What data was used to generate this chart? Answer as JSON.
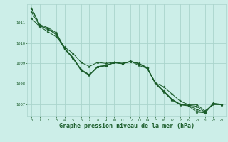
{
  "background_color": "#cceee8",
  "grid_color": "#aad4cc",
  "line_color": "#1a5c2a",
  "marker_color": "#1a5c2a",
  "title": "Graphe pression niveau de la mer (hPa)",
  "title_fontsize": 6.0,
  "title_fontweight": "bold",
  "tick_color": "#1a5c2a",
  "xlim": [
    -0.5,
    23.5
  ],
  "ylim": [
    1006.4,
    1011.9
  ],
  "yticks": [
    1007,
    1008,
    1009,
    1010,
    1011
  ],
  "xticks": [
    0,
    1,
    2,
    3,
    4,
    5,
    6,
    7,
    8,
    9,
    10,
    11,
    12,
    13,
    14,
    15,
    16,
    17,
    18,
    19,
    20,
    21,
    22,
    23
  ],
  "series": [
    [
      1011.7,
      1010.9,
      1010.75,
      1010.5,
      1009.75,
      1009.3,
      1008.7,
      1008.45,
      1008.85,
      1008.9,
      1009.05,
      1009.0,
      1009.1,
      1009.0,
      1008.8,
      1008.05,
      1007.65,
      1007.25,
      1007.0,
      1006.95,
      1006.9,
      1006.62,
      1007.05,
      1007.0
    ],
    [
      1011.7,
      1010.85,
      1010.7,
      1010.4,
      1009.7,
      1009.25,
      1008.65,
      1008.42,
      1008.82,
      1008.88,
      1009.03,
      1008.98,
      1009.08,
      1008.98,
      1008.75,
      1008.0,
      1007.6,
      1007.2,
      1006.97,
      1006.92,
      1006.62,
      1006.58,
      1007.02,
      1006.97
    ],
    [
      1011.2,
      1010.8,
      1010.55,
      1010.3,
      1009.8,
      1009.5,
      1009.05,
      1008.85,
      1009.05,
      1009.0,
      1009.05,
      1009.0,
      1009.1,
      1008.9,
      1008.75,
      1008.05,
      1007.85,
      1007.5,
      1007.15,
      1006.98,
      1006.98,
      1006.68,
      1006.98,
      1006.98
    ],
    [
      1011.5,
      1010.85,
      1010.65,
      1010.45,
      1009.72,
      1009.28,
      1008.68,
      1008.44,
      1008.84,
      1008.89,
      1009.04,
      1008.99,
      1009.09,
      1008.99,
      1008.77,
      1008.02,
      1007.62,
      1007.22,
      1006.99,
      1006.94,
      1006.75,
      1006.6,
      1007.03,
      1006.98
    ]
  ]
}
